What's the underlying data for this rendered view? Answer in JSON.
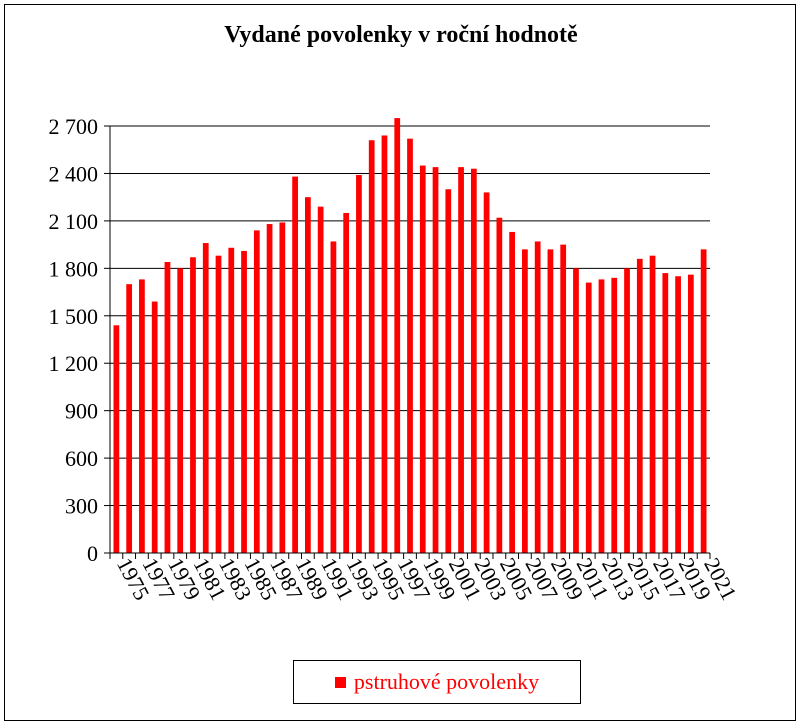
{
  "colors": {
    "bar": "#ff0000",
    "gridline": "#000000",
    "axis": "#000000",
    "text": "#000000"
  },
  "chart_data": {
    "type": "bar",
    "title": "Vydané povolenky v roční hodnotě",
    "xlabel": "",
    "ylabel": "",
    "ylim": [
      0,
      2700
    ],
    "yticks": [
      0,
      300,
      600,
      900,
      1200,
      1500,
      1800,
      2100,
      2400,
      2700
    ],
    "ytick_labels": [
      "0",
      "300",
      "600",
      "900",
      "1 200",
      "1 500",
      "1 800",
      "2 100",
      "2 400",
      "2 700"
    ],
    "grid": true,
    "legend_position": "bottom",
    "categories": [
      "1975",
      "1976",
      "1977",
      "1978",
      "1979",
      "1980",
      "1981",
      "1982",
      "1983",
      "1984",
      "1985",
      "1986",
      "1987",
      "1988",
      "1989",
      "1990",
      "1991",
      "1992",
      "1993",
      "1994",
      "1995",
      "1996",
      "1997",
      "1998",
      "1999",
      "2000",
      "2001",
      "2002",
      "2003",
      "2004",
      "2005",
      "2006",
      "2007",
      "2008",
      "2009",
      "2010",
      "2011",
      "2012",
      "2013",
      "2014",
      "2015",
      "2016",
      "2017",
      "2018",
      "2019",
      "2020",
      "2021"
    ],
    "xtick_labels": [
      "1975",
      "1977",
      "1979",
      "1981",
      "1983",
      "1985",
      "1987",
      "1989",
      "1991",
      "1993",
      "1995",
      "1997",
      "1999",
      "2001",
      "2003",
      "2005",
      "2007",
      "2009",
      "2011",
      "2013",
      "2015",
      "2017",
      "2019",
      "2021"
    ],
    "series": [
      {
        "name": "pstruhové povolenky",
        "values": [
          1440,
          1700,
          1730,
          1590,
          1840,
          1800,
          1870,
          1960,
          1880,
          1930,
          1910,
          2040,
          2080,
          2090,
          2380,
          2250,
          2190,
          1970,
          2150,
          2390,
          2610,
          2640,
          2750,
          2620,
          2450,
          2440,
          2300,
          2440,
          2430,
          2280,
          2120,
          2030,
          1920,
          1970,
          1920,
          1950,
          1800,
          1710,
          1730,
          1740,
          1800,
          1860,
          1880,
          1770,
          1750,
          1760,
          1920
        ]
      }
    ]
  }
}
